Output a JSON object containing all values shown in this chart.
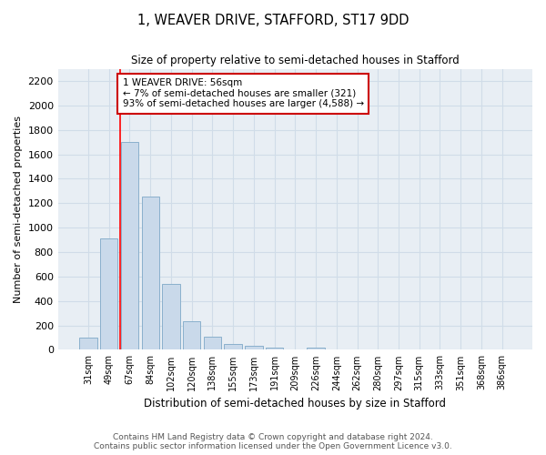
{
  "title": "1, WEAVER DRIVE, STAFFORD, ST17 9DD",
  "subtitle": "Size of property relative to semi-detached houses in Stafford",
  "xlabel": "Distribution of semi-detached houses by size in Stafford",
  "ylabel": "Number of semi-detached properties",
  "footnote1": "Contains HM Land Registry data © Crown copyright and database right 2024.",
  "footnote2": "Contains public sector information licensed under the Open Government Licence v3.0.",
  "categories": [
    "31sqm",
    "49sqm",
    "67sqm",
    "84sqm",
    "102sqm",
    "120sqm",
    "138sqm",
    "155sqm",
    "173sqm",
    "191sqm",
    "209sqm",
    "226sqm",
    "244sqm",
    "262sqm",
    "280sqm",
    "297sqm",
    "315sqm",
    "333sqm",
    "351sqm",
    "368sqm",
    "386sqm"
  ],
  "values": [
    100,
    910,
    1700,
    1255,
    540,
    235,
    105,
    45,
    30,
    20,
    0,
    20,
    0,
    0,
    0,
    0,
    0,
    0,
    0,
    0,
    0
  ],
  "bar_color": "#c9d9ea",
  "bar_edge_color": "#8ab0cc",
  "ylim": [
    0,
    2300
  ],
  "yticks": [
    0,
    200,
    400,
    600,
    800,
    1000,
    1200,
    1400,
    1600,
    1800,
    2000,
    2200
  ],
  "red_line_x": 1.55,
  "annotation_title": "1 WEAVER DRIVE: 56sqm",
  "annotation_line1": "← 7% of semi-detached houses are smaller (321)",
  "annotation_line2": "93% of semi-detached houses are larger (4,588) →",
  "annotation_box_color": "#ffffff",
  "annotation_box_edge": "#cc0000",
  "grid_color": "#d0dce8",
  "bg_color": "#e8eef4",
  "fig_bg_color": "#ffffff"
}
